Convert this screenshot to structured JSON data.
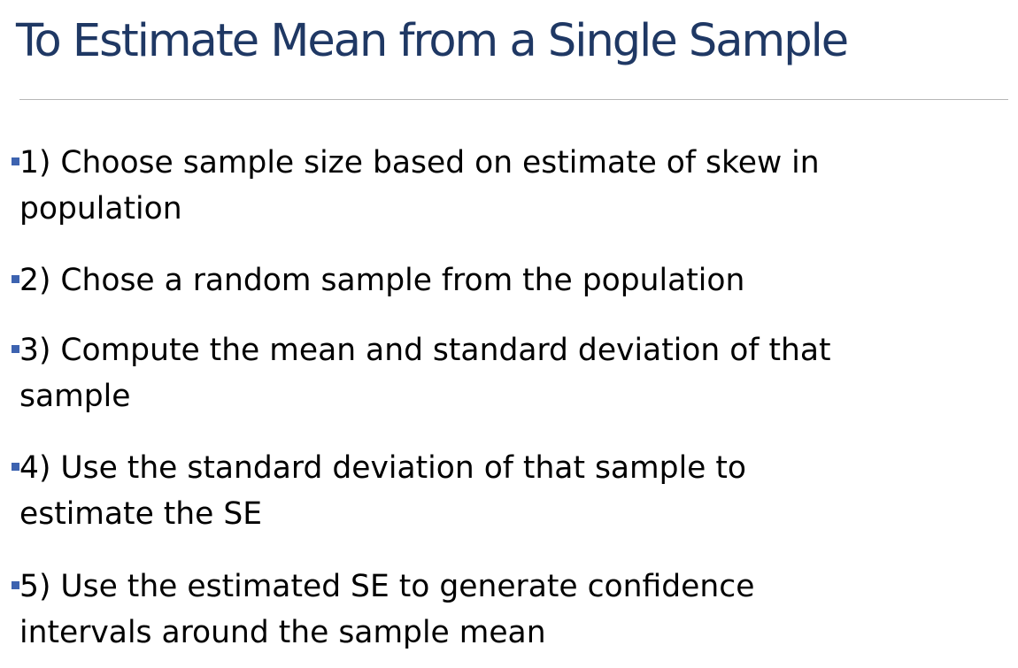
{
  "slide": {
    "title": "To Estimate Mean from a Single Sample",
    "bullets": [
      {
        "lines": [
          "1) Choose sample size based on estimate of skew in",
          "population"
        ]
      },
      {
        "lines": [
          "2) Chose a random sample from the population"
        ]
      },
      {
        "lines": [
          "3) Compute the mean and standard deviation of that",
          "sample"
        ]
      },
      {
        "lines": [
          "4) Use the standard deviation of that sample to",
          "estimate the SE"
        ]
      },
      {
        "lines": [
          "5) Use the estimated SE to generate confidence",
          "intervals around the sample mean"
        ]
      }
    ],
    "colors": {
      "title": "#1f3864",
      "bullet_marker": "#3d63b0",
      "divider": "#b7b7b7",
      "text": "#000000"
    }
  }
}
